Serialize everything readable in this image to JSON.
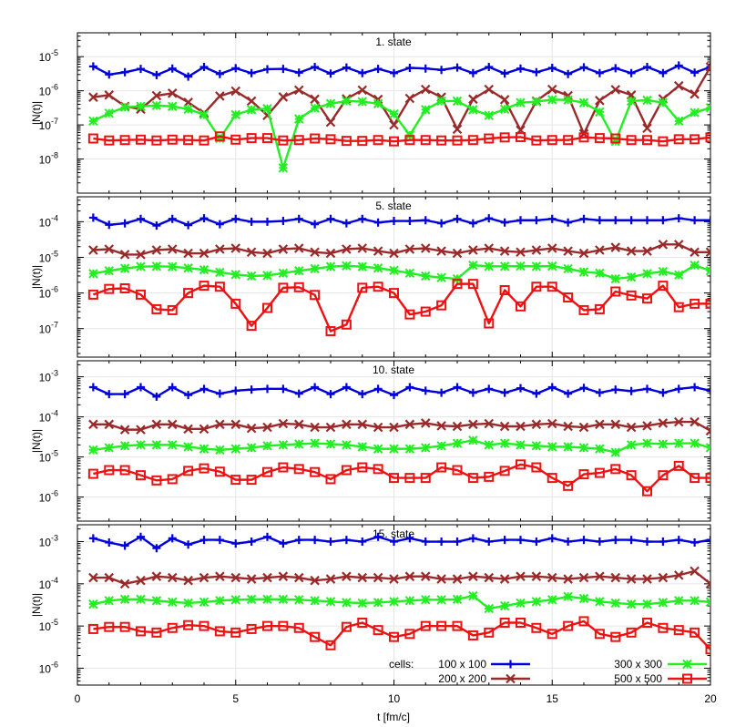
{
  "chart_data": {
    "type": "line",
    "x_axis": {
      "label": "t [fm/c]",
      "range": [
        0,
        20
      ],
      "ticks": [
        0,
        5,
        10,
        15,
        20
      ]
    },
    "y_scale": "log",
    "y_label": "|N(t)|",
    "grid": true,
    "x": [
      0.5,
      1.0,
      1.5,
      2.0,
      2.5,
      3.0,
      3.5,
      4.0,
      4.5,
      5.0,
      5.5,
      6.0,
      6.5,
      7.0,
      7.5,
      8.0,
      8.5,
      9.0,
      9.5,
      10.0,
      10.5,
      11.0,
      11.5,
      12.0,
      12.5,
      13.0,
      13.5,
      14.0,
      14.5,
      15.0,
      15.5,
      16.0,
      16.5,
      17.0,
      17.5,
      18.0,
      18.5,
      19.0,
      19.5,
      20.0
    ],
    "legend": {
      "placement": "bottom-right",
      "prefix": "cells:",
      "entries": [
        {
          "label": "100 x 100",
          "color": "#0000dd",
          "marker": "plus"
        },
        {
          "label": "200 x 200",
          "color": "#9a2a2a",
          "marker": "cross"
        },
        {
          "label": "300 x 300",
          "color": "#22ee22",
          "marker": "star"
        },
        {
          "label": "500 x 500",
          "color": "#ee1111",
          "marker": "square"
        }
      ]
    },
    "panels": [
      {
        "title": "1. state",
        "y_log_range": [
          -9,
          -4.3
        ],
        "y_tick_labels": [
          {
            "exp": -8,
            "text": "10",
            "sup": "-8"
          },
          {
            "exp": -7,
            "text": "10",
            "sup": "-7"
          },
          {
            "exp": -6,
            "text": "10",
            "sup": "-6"
          },
          {
            "exp": -5,
            "text": "10",
            "sup": "-5"
          }
        ],
        "series": [
          {
            "name": "100 x 100",
            "values": [
              5.2e-06,
              3e-06,
              3.5e-06,
              4.4e-06,
              2.9e-06,
              4.5e-06,
              2.6e-06,
              5e-06,
              3.1e-06,
              4.6e-06,
              3.3e-06,
              4.3e-06,
              4.4e-06,
              3.4e-06,
              5e-06,
              3.2e-06,
              4.8e-06,
              3.3e-06,
              4.4e-06,
              3.3e-06,
              4.7e-06,
              4.5e-06,
              4.1e-06,
              4.8e-06,
              3.3e-06,
              5e-06,
              3.2e-06,
              4.5e-06,
              3.5e-06,
              4.7e-06,
              3.1e-06,
              4.9e-06,
              3.3e-06,
              4.6e-06,
              3.3e-06,
              5e-06,
              3.3e-06,
              5.5e-06,
              3.4e-06,
              5e-06
            ]
          },
          {
            "name": "200 x 200",
            "values": [
              6.5e-07,
              7.5e-07,
              3.5e-07,
              2.9e-07,
              7.2e-07,
              8.5e-07,
              4.6e-07,
              2.2e-07,
              7e-07,
              9.8e-07,
              5e-07,
              1.9e-07,
              6.6e-07,
              1.05e-06,
              5.7e-07,
              1.2e-07,
              5.8e-07,
              1.05e-06,
              5.6e-07,
              1e-07,
              6e-07,
              1.1e-06,
              6.5e-07,
              7.5e-08,
              5.7e-07,
              1.1e-06,
              5.5e-07,
              7e-08,
              5e-07,
              1.1e-06,
              7.2e-07,
              5.5e-08,
              5.2e-07,
              1.08e-06,
              7.5e-07,
              8e-08,
              5.8e-07,
              1.4e-06,
              8e-07,
              5e-06
            ]
          },
          {
            "name": "300 x 300",
            "values": [
              1.3e-07,
              2.2e-07,
              3.3e-07,
              3.5e-07,
              3.7e-07,
              3.5e-07,
              2.9e-07,
              2e-07,
              4e-08,
              2e-07,
              2.8e-07,
              3e-07,
              5.5e-09,
              1.5e-07,
              3.1e-07,
              4.2e-07,
              5e-07,
              4.8e-07,
              4.2e-07,
              2.1e-07,
              5e-08,
              2.8e-07,
              5e-07,
              5e-07,
              2.8e-07,
              1.9e-07,
              2.9e-07,
              4.5e-07,
              4.8e-07,
              5.5e-07,
              5.4e-07,
              4.5e-07,
              2.4e-07,
              3.3e-08,
              5e-07,
              5.3e-07,
              4.5e-07,
              1.3e-07,
              2.3e-07,
              3.2e-07
            ]
          },
          {
            "name": "500 x 500",
            "values": [
              4e-08,
              3.5e-08,
              3.6e-08,
              3.7e-08,
              3.5e-08,
              3.7e-08,
              3.6e-08,
              3.5e-08,
              4.6e-08,
              3.7e-08,
              4.1e-08,
              4.1e-08,
              3.5e-08,
              3.6e-08,
              4e-08,
              3.8e-08,
              3.4e-08,
              3.4e-08,
              3.6e-08,
              3.3e-08,
              3.6e-08,
              3.6e-08,
              3.5e-08,
              3.5e-08,
              3.6e-08,
              4e-08,
              4.3e-08,
              4.4e-08,
              3.5e-08,
              3.6e-08,
              3.6e-08,
              4.3e-08,
              4.1e-08,
              4e-08,
              3.6e-08,
              3.6e-08,
              3.3e-08,
              3.8e-08,
              3.8e-08,
              4.3e-08
            ]
          }
        ]
      },
      {
        "title": "5. state",
        "y_log_range": [
          -7.8,
          -3.3
        ],
        "y_tick_labels": [
          {
            "exp": -7,
            "text": "10",
            "sup": "-7"
          },
          {
            "exp": -6,
            "text": "10",
            "sup": "-6"
          },
          {
            "exp": -5,
            "text": "10",
            "sup": "-5"
          },
          {
            "exp": -4,
            "text": "10",
            "sup": "-4"
          }
        ],
        "series": [
          {
            "name": "100 x 100",
            "values": [
              0.00013,
              8.2e-05,
              9e-05,
              0.00012,
              7.8e-05,
              0.00012,
              8e-05,
              0.000125,
              8.5e-05,
              0.00012,
              0.0001,
              0.0001,
              0.000105,
              0.00012,
              8.5e-05,
              0.00012,
              9e-05,
              0.00012,
              9.5e-05,
              0.000105,
              0.000105,
              0.00011,
              9e-05,
              0.00012,
              9e-05,
              0.000125,
              9.5e-05,
              0.00011,
              0.00011,
              0.00012,
              9.5e-05,
              0.00012,
              0.00011,
              0.00011,
              0.00011,
              0.00011,
              0.00011,
              0.000125,
              0.00011,
              0.00011
            ]
          },
          {
            "name": "200 x 200",
            "values": [
              1.6e-05,
              1.7e-05,
              1.2e-05,
              1.2e-05,
              1.6e-05,
              1.7e-05,
              1.3e-05,
              1.3e-05,
              1.7e-05,
              1.8e-05,
              1.4e-05,
              1.3e-05,
              1.7e-05,
              1.8e-05,
              1.4e-05,
              1.3e-05,
              1.7e-05,
              1.8e-05,
              1.5e-05,
              1.3e-05,
              1.7e-05,
              1.8e-05,
              1.5e-05,
              1.3e-05,
              1.6e-05,
              1.8e-05,
              1.5e-05,
              1.4e-05,
              1.6e-05,
              1.8e-05,
              1.5e-05,
              1.3e-05,
              1.6e-05,
              1.9e-05,
              1.5e-05,
              1.5e-05,
              2.3e-05,
              2.3e-05,
              1.4e-05,
              1.4e-05
            ]
          },
          {
            "name": "300 x 300",
            "values": [
              3.5e-06,
              4.2e-06,
              4.9e-06,
              5.5e-06,
              5.6e-06,
              5.5e-06,
              5e-06,
              4.5e-06,
              3.8e-06,
              3.3e-06,
              3e-06,
              3.1e-06,
              3.6e-06,
              4.2e-06,
              4.8e-06,
              5.5e-06,
              5.8e-06,
              5.5e-06,
              5e-06,
              4.3e-06,
              3.6e-06,
              3e-06,
              2.7e-06,
              2.5e-06,
              6e-06,
              5.6e-06,
              5.6e-06,
              5.7e-06,
              5.6e-06,
              5.7e-06,
              4.8e-06,
              3.9e-06,
              3.6e-06,
              2.5e-06,
              2.8e-06,
              3.5e-06,
              4e-06,
              3.2e-06,
              6e-06,
              4.2e-06
            ]
          },
          {
            "name": "500 x 500",
            "values": [
              9e-07,
              1.3e-06,
              1.35e-06,
              9e-07,
              3.5e-07,
              3.3e-07,
              1e-06,
              1.6e-06,
              1.5e-06,
              5e-07,
              1.2e-07,
              3.8e-07,
              1.4e-06,
              1.45e-06,
              8.8e-07,
              8.5e-08,
              1.3e-07,
              1.4e-06,
              1.5e-06,
              1e-06,
              2.5e-07,
              3e-07,
              4.5e-07,
              1.8e-06,
              1.8e-06,
              1.4e-07,
              1.2e-06,
              4.2e-07,
              1.5e-06,
              1.5e-06,
              7.5e-07,
              3.3e-07,
              3.5e-07,
              1.1e-06,
              8.5e-07,
              7e-07,
              1.6e-06,
              4e-07,
              5e-07,
              5e-07
            ]
          }
        ]
      },
      {
        "title": "10. state",
        "y_log_range": [
          -6.6,
          -2.6
        ],
        "y_tick_labels": [
          {
            "exp": -6,
            "text": "10",
            "sup": "-6"
          },
          {
            "exp": -5,
            "text": "10",
            "sup": "-5"
          },
          {
            "exp": -4,
            "text": "10",
            "sup": "-4"
          },
          {
            "exp": -3,
            "text": "10",
            "sup": "-3"
          }
        ],
        "series": [
          {
            "name": "100 x 100",
            "values": [
              0.00055,
              0.00037,
              0.00037,
              0.00055,
              0.00032,
              0.00055,
              0.00035,
              0.0005,
              0.00038,
              0.00045,
              0.00048,
              0.0005,
              0.0005,
              0.00038,
              0.00055,
              0.00037,
              0.00055,
              0.00037,
              0.0005,
              0.00035,
              0.00055,
              0.00045,
              0.0004,
              0.00055,
              0.0004,
              0.0005,
              0.0004,
              0.00052,
              0.00038,
              0.00055,
              0.00038,
              0.00053,
              0.0004,
              0.00048,
              0.00044,
              0.0005,
              0.0004,
              0.0005,
              0.00055,
              0.00045
            ]
          },
          {
            "name": "200 x 200",
            "values": [
              6.5e-05,
              6.5e-05,
              4.8e-05,
              4.8e-05,
              6.5e-05,
              6.5e-05,
              5e-05,
              5e-05,
              6.5e-05,
              6.5e-05,
              5.2e-05,
              5.5e-05,
              6.8e-05,
              6.5e-05,
              5.5e-05,
              5.5e-05,
              6.5e-05,
              6.5e-05,
              5.5e-05,
              5.5e-05,
              6.5e-05,
              7e-05,
              6e-05,
              5.8e-05,
              6.5e-05,
              6.8e-05,
              5.8e-05,
              5.8e-05,
              6.5e-05,
              6.8e-05,
              5.8e-05,
              5.5e-05,
              6.5e-05,
              6.5e-05,
              5.5e-05,
              6e-05,
              7e-05,
              7.5e-05,
              7.5e-05,
              4.5e-05
            ]
          },
          {
            "name": "300 x 300",
            "values": [
              1.5e-05,
              1.7e-05,
              1.9e-05,
              2e-05,
              2e-05,
              2e-05,
              1.8e-05,
              1.6e-05,
              1.5e-05,
              1.6e-05,
              1.7e-05,
              1.9e-05,
              2e-05,
              2.1e-05,
              2.2e-05,
              2.1e-05,
              2e-05,
              1.8e-05,
              1.6e-05,
              1.6e-05,
              1.6e-05,
              1.7e-05,
              1.9e-05,
              2.2e-05,
              2.6e-05,
              2e-05,
              2.2e-05,
              2e-05,
              1.9e-05,
              1.8e-05,
              1.8e-05,
              1.7e-05,
              1.6e-05,
              1.3e-05,
              2e-05,
              2.2e-05,
              2.1e-05,
              2.2e-05,
              2.2e-05,
              1.7e-05
            ]
          },
          {
            "name": "500 x 500",
            "values": [
              3.8e-06,
              4.7e-06,
              4.7e-06,
              3.5e-06,
              2.6e-06,
              2.8e-06,
              4.5e-06,
              5.2e-06,
              4.3e-06,
              2.7e-06,
              2.7e-06,
              4.2e-06,
              5.5e-06,
              5e-06,
              4.2e-06,
              2.8e-06,
              4.7e-06,
              5.5e-06,
              5e-06,
              3e-06,
              3e-06,
              3e-06,
              5.5e-06,
              4.7e-06,
              3e-06,
              3.2e-06,
              4.5e-06,
              6.5e-06,
              5.5e-06,
              3e-06,
              1.9e-06,
              3.7e-06,
              4e-06,
              5e-06,
              3.5e-06,
              1.4e-06,
              3.5e-06,
              6e-06,
              3e-06,
              3e-06
            ]
          }
        ]
      },
      {
        "title": "15. state",
        "y_log_range": [
          -6.4,
          -2.6
        ],
        "y_tick_labels": [
          {
            "exp": -6,
            "text": "10",
            "sup": "-6"
          },
          {
            "exp": -5,
            "text": "10",
            "sup": "-5"
          },
          {
            "exp": -4,
            "text": "10",
            "sup": "-4"
          },
          {
            "exp": -3,
            "text": "10",
            "sup": "-3"
          }
        ],
        "series": [
          {
            "name": "100 x 100",
            "values": [
              0.0012,
              0.00095,
              0.0008,
              0.0013,
              0.0007,
              0.0012,
              0.00085,
              0.0011,
              0.0011,
              0.0009,
              0.001,
              0.0013,
              0.0009,
              0.0011,
              0.0011,
              0.001,
              0.0011,
              0.001,
              0.0013,
              0.001,
              0.0012,
              0.001,
              0.001,
              0.001,
              0.0012,
              0.001,
              0.0011,
              0.0011,
              0.001,
              0.0012,
              0.001,
              0.0011,
              0.001,
              0.0011,
              0.0011,
              0.001,
              0.001,
              0.0011,
              0.00095,
              0.0011
            ]
          },
          {
            "name": "200 x 200",
            "values": [
              0.00014,
              0.00014,
              0.0001,
              0.00012,
              0.00015,
              0.00014,
              0.00012,
              0.00014,
              0.00015,
              0.00014,
              0.00013,
              0.00014,
              0.00015,
              0.00014,
              0.00012,
              0.00013,
              0.00015,
              0.00014,
              0.00014,
              0.00013,
              0.00015,
              0.00015,
              0.00013,
              0.00013,
              0.00015,
              0.00014,
              0.00013,
              0.00015,
              0.00015,
              0.00014,
              0.00013,
              0.00014,
              0.00015,
              0.00014,
              0.00013,
              0.00013,
              0.00014,
              0.00016,
              0.0002,
              0.0001
            ]
          },
          {
            "name": "300 x 300",
            "values": [
              3.3e-05,
              4e-05,
              4.3e-05,
              4.3e-05,
              4e-05,
              3.7e-05,
              3.5e-05,
              3.7e-05,
              4e-05,
              4.2e-05,
              4.3e-05,
              4.3e-05,
              4.3e-05,
              4.2e-05,
              4e-05,
              3.8e-05,
              3.6e-05,
              3.5e-05,
              3.6e-05,
              3.8e-05,
              4e-05,
              4.2e-05,
              4.2e-05,
              4.3e-05,
              5.2e-05,
              2.6e-05,
              3e-05,
              3.5e-05,
              3.8e-05,
              4.2e-05,
              5e-05,
              4.5e-05,
              3.8e-05,
              3.5e-05,
              3.3e-05,
              3.3e-05,
              3.6e-05,
              4e-05,
              4e-05,
              3.7e-05
            ]
          },
          {
            "name": "500 x 500",
            "values": [
              8.5e-06,
              9.5e-06,
              9.5e-06,
              7.5e-06,
              7e-06,
              9e-06,
              1.05e-05,
              1e-05,
              7.5e-06,
              7e-06,
              8.5e-06,
              1e-05,
              1e-05,
              9e-06,
              5.5e-06,
              3.5e-06,
              9.5e-06,
              1.2e-05,
              8e-06,
              5.5e-06,
              6.5e-06,
              1e-05,
              1e-05,
              1e-05,
              6e-06,
              7e-06,
              1.2e-05,
              1.2e-05,
              9e-06,
              6.5e-06,
              1e-05,
              1.3e-05,
              6.5e-06,
              5.5e-06,
              7e-06,
              1.2e-05,
              9e-06,
              8e-06,
              7e-06,
              2.8e-06
            ]
          }
        ]
      }
    ]
  }
}
